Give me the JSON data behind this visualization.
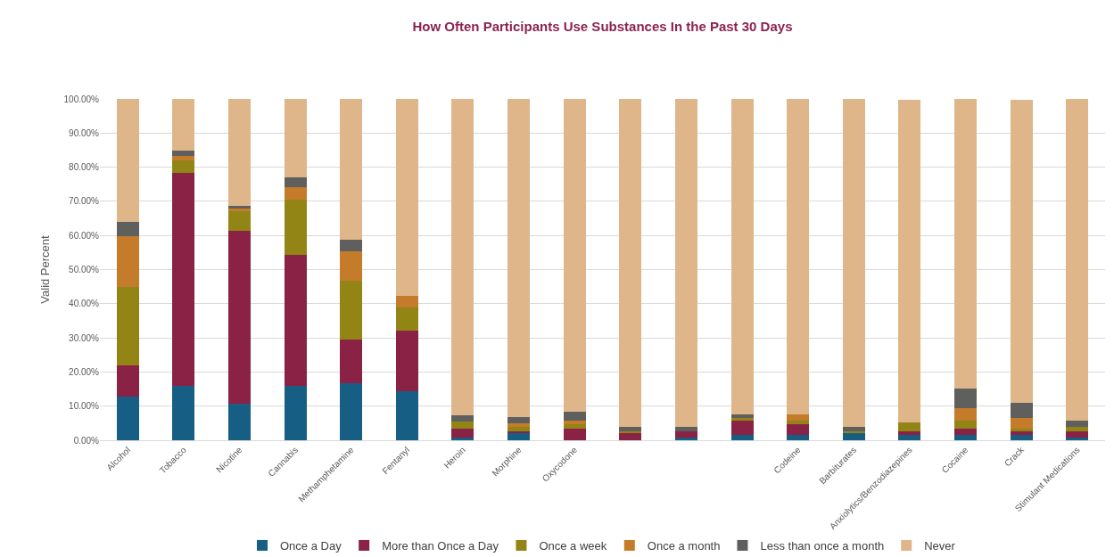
{
  "chart_data": {
    "type": "bar",
    "stacked": true,
    "title": "How Often Participants Use Substances In the Past 30 Days",
    "ylabel": "Valid Percent",
    "categories": [
      "Alcohol",
      "Tobacco",
      "Nicotine",
      "Cannabis",
      "Methamphetamine",
      "Fentanyl",
      "Heroin",
      "Morphine",
      "Oxycodone",
      null,
      null,
      null,
      "Codeine",
      "Barbiturates",
      "Anxiolytics/Benzodiazepines",
      "Cocaine",
      "Crack",
      "Stimulant Medications"
    ],
    "series": [
      {
        "name": "Once a Day",
        "color": "#165e83",
        "values": [
          12.8,
          15.9,
          10.7,
          15.9,
          16.6,
          14.4,
          0.9,
          2.0,
          0,
          0,
          0.9,
          1.6,
          1.6,
          2.0,
          1.5,
          1.6,
          1.5,
          0.7
        ]
      },
      {
        "name": "More than Once a Day",
        "color": "#8a2245",
        "values": [
          9.1,
          62.5,
          50.7,
          38.4,
          12.8,
          17.7,
          2.6,
          0.7,
          3.5,
          2.0,
          1.8,
          4.1,
          3.0,
          0,
          1.1,
          1.9,
          1.2,
          2.0
        ]
      },
      {
        "name": "Once a week",
        "color": "#938515",
        "values": [
          23.0,
          3.7,
          5.7,
          16.2,
          17.3,
          6.8,
          1.9,
          1.1,
          1.1,
          0.7,
          0,
          0.7,
          1.2,
          0.7,
          2.7,
          2.2,
          0.8,
          1.1
        ]
      },
      {
        "name": "Once a month",
        "color": "#c47b2a",
        "values": [
          15.0,
          1.2,
          0.8,
          3.6,
          8.7,
          3.3,
          0,
          1.1,
          1.1,
          0,
          0,
          0,
          1.9,
          0,
          0,
          3.7,
          2.9,
          0
        ]
      },
      {
        "name": "Less than once a month",
        "color": "#5f605e",
        "values": [
          4.1,
          1.5,
          0.7,
          2.8,
          3.4,
          0,
          1.9,
          1.9,
          2.7,
          1.2,
          1.2,
          1.2,
          0,
          1.2,
          0,
          5.7,
          4.6,
          1.9
        ]
      },
      {
        "name": "Never",
        "color": "#deb68a",
        "values": [
          36.0,
          15.2,
          31.4,
          23.1,
          41.2,
          57.8,
          92.7,
          93.2,
          91.6,
          96.1,
          96.1,
          92.4,
          92.3,
          96.1,
          94.4,
          84.9,
          88.7,
          94.3
        ]
      }
    ],
    "ylim": [
      0,
      100
    ],
    "yticks": [
      {
        "value": 0,
        "label": "0.00%"
      },
      {
        "value": 10,
        "label": "10.00%"
      },
      {
        "value": 20,
        "label": "20.00%"
      },
      {
        "value": 30,
        "label": "30.00%"
      },
      {
        "value": 40,
        "label": "40.00%"
      },
      {
        "value": 50,
        "label": "50.00%"
      },
      {
        "value": 60,
        "label": "60.00%"
      },
      {
        "value": 70,
        "label": "70.00%"
      },
      {
        "value": 80,
        "label": "80.00%"
      },
      {
        "value": 90,
        "label": "90.00%"
      },
      {
        "value": 100,
        "label": "100.00%"
      }
    ],
    "grid": "y",
    "legend": "bottom"
  }
}
